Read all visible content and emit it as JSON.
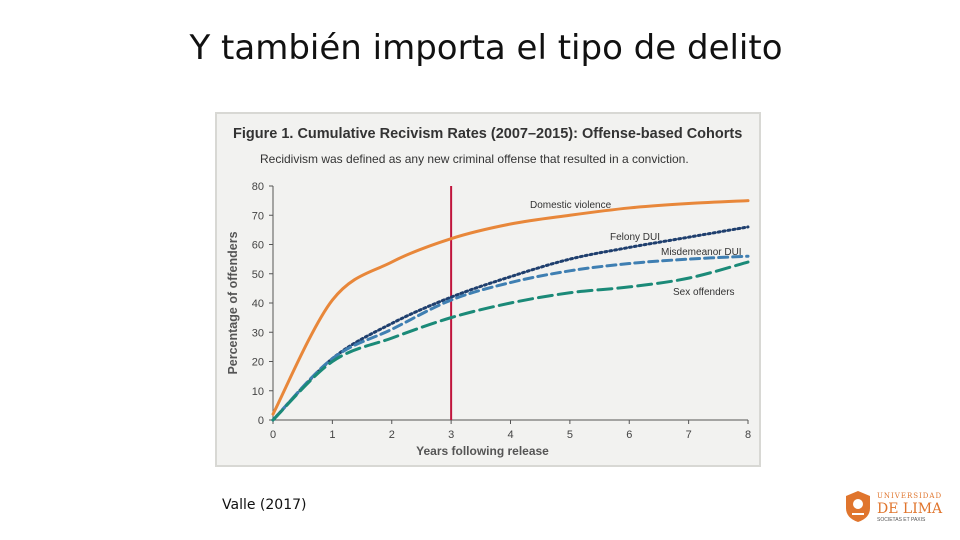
{
  "slide": {
    "title": "Y también importa el tipo de delito",
    "citation": "Valle (2017)"
  },
  "logo": {
    "line1": "UNIVERSIDAD",
    "line2": "DE LIMA",
    "line3": "SOCIETAS ET PAXIS"
  },
  "chart_data": {
    "type": "line",
    "title": "Figure 1. Cumulative Recivism Rates (2007–2015): Offense-based Cohorts",
    "subtitle": "Recidivism was defined as any new criminal offense that resulted in a conviction.",
    "xlabel": "Years following release",
    "ylabel": "Percentage of offenders",
    "xlim": [
      0,
      8
    ],
    "ylim": [
      0,
      80
    ],
    "xticks": [
      "0",
      "1",
      "2",
      "3",
      "4",
      "5",
      "6",
      "7",
      "8"
    ],
    "yticks": [
      "0",
      "10",
      "20",
      "30",
      "40",
      "50",
      "60",
      "70",
      "80"
    ],
    "reference_line": {
      "x": 3,
      "color": "#c0143c"
    },
    "x": [
      0,
      1,
      2,
      3,
      4,
      5,
      6,
      7,
      8
    ],
    "series": [
      {
        "name": "Domestic violence",
        "color": "#e8873a",
        "dash": "",
        "width": 3,
        "values": [
          2,
          41,
          54,
          62,
          67,
          70,
          72.5,
          74,
          75
        ]
      },
      {
        "name": "Felony DUI",
        "color": "#1f3f6e",
        "dash": "2,3",
        "width": 3,
        "values": [
          0,
          21,
          33,
          42,
          49,
          55,
          59,
          62.5,
          66
        ]
      },
      {
        "name": "Misdemeanor DUI",
        "color": "#3f7fb2",
        "dash": "9,5",
        "width": 3,
        "values": [
          0,
          21,
          31,
          41,
          47,
          51,
          53.5,
          55,
          56
        ]
      },
      {
        "name": "Sex offenders",
        "color": "#1b8a78",
        "dash": "14,6",
        "width": 3,
        "values": [
          0,
          20,
          28,
          35,
          40,
          43.5,
          45.5,
          48.5,
          54
        ]
      }
    ],
    "grid": false,
    "legend": "inline-labels"
  }
}
